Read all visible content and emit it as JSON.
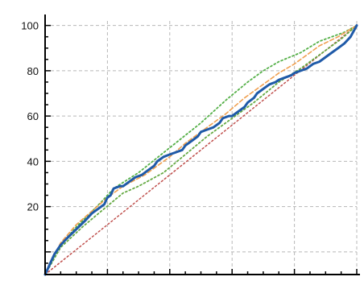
{
  "chart_data": {
    "type": "line",
    "title": "",
    "xlabel": "",
    "ylabel": "",
    "xlim": [
      0,
      100
    ],
    "ylim": [
      -10,
      102
    ],
    "grid": true,
    "y_tick_labels": [
      {
        "value": 100,
        "label": "100"
      },
      {
        "value": 80,
        "label": "80"
      },
      {
        "value": 60,
        "label": "60"
      },
      {
        "value": 40,
        "label": "40"
      },
      {
        "value": 20,
        "label": "20"
      }
    ],
    "grid_x": [
      20,
      40,
      60,
      80,
      100
    ],
    "grid_y": [
      0,
      20,
      40,
      60,
      80,
      100
    ],
    "minor_ticks_x": [
      0,
      5,
      10,
      15,
      20,
      25,
      30,
      35,
      40,
      45,
      50,
      55,
      60,
      65,
      70,
      75,
      80,
      85,
      90,
      95,
      100
    ],
    "minor_ticks_y": [
      -10,
      -5,
      0,
      5,
      10,
      15,
      20,
      25,
      30,
      35,
      40,
      45,
      50,
      55,
      60,
      65,
      70,
      75,
      80,
      85,
      90,
      95,
      100
    ],
    "series": [
      {
        "color": "#c0504d",
        "style": "dotted",
        "width": 1.5,
        "points": [
          [
            0,
            -10
          ],
          [
            100,
            100
          ]
        ]
      },
      {
        "color": "#66aa44",
        "style": "dotted",
        "width": 1.8,
        "points": [
          [
            0,
            -10
          ],
          [
            5,
            2
          ],
          [
            12,
            11
          ],
          [
            18,
            18
          ],
          [
            25,
            26
          ],
          [
            30,
            29
          ],
          [
            38,
            35
          ],
          [
            45,
            43
          ],
          [
            52,
            51
          ],
          [
            60,
            59
          ],
          [
            67,
            66
          ],
          [
            75,
            75
          ],
          [
            82,
            81
          ],
          [
            90,
            89
          ],
          [
            95,
            94
          ],
          [
            100,
            100
          ]
        ]
      },
      {
        "color": "#55b048",
        "style": "dotted",
        "width": 1.8,
        "points": [
          [
            0,
            -10
          ],
          [
            5,
            3
          ],
          [
            10,
            11
          ],
          [
            18,
            22
          ],
          [
            22,
            28
          ],
          [
            30,
            35
          ],
          [
            40,
            46
          ],
          [
            50,
            57
          ],
          [
            58,
            67
          ],
          [
            65,
            75
          ],
          [
            70,
            80
          ],
          [
            75,
            84
          ],
          [
            82,
            88
          ],
          [
            88,
            93
          ],
          [
            92,
            95
          ],
          [
            96,
            97
          ],
          [
            100,
            100
          ]
        ]
      },
      {
        "color": "#f0a050",
        "style": "dashed",
        "width": 1.6,
        "points": [
          [
            0,
            -10
          ],
          [
            5,
            4
          ],
          [
            10,
            12
          ],
          [
            15,
            18
          ],
          [
            20,
            24
          ],
          [
            25,
            29
          ],
          [
            32,
            34
          ],
          [
            40,
            42
          ],
          [
            45,
            48
          ],
          [
            50,
            53
          ],
          [
            58,
            61
          ],
          [
            64,
            68
          ],
          [
            70,
            74
          ],
          [
            75,
            79
          ],
          [
            80,
            83
          ],
          [
            85,
            88
          ],
          [
            88,
            91
          ],
          [
            94,
            95
          ],
          [
            100,
            100
          ]
        ]
      },
      {
        "color": "#1f5aa8",
        "style": "solid",
        "width": 3,
        "points": [
          [
            0,
            -10
          ],
          [
            1,
            -7
          ],
          [
            2,
            -4
          ],
          [
            3,
            -1
          ],
          [
            5,
            3
          ],
          [
            7,
            6
          ],
          [
            10,
            10
          ],
          [
            13,
            14
          ],
          [
            15,
            17
          ],
          [
            17,
            19
          ],
          [
            19,
            21
          ],
          [
            20,
            24
          ],
          [
            21,
            25
          ],
          [
            22,
            28
          ],
          [
            24,
            29
          ],
          [
            25,
            29
          ],
          [
            27,
            31
          ],
          [
            29,
            33
          ],
          [
            31,
            34
          ],
          [
            33,
            36
          ],
          [
            35,
            38
          ],
          [
            36,
            40
          ],
          [
            37,
            41
          ],
          [
            38,
            42
          ],
          [
            40,
            43
          ],
          [
            42,
            44
          ],
          [
            44,
            45
          ],
          [
            45,
            47
          ],
          [
            47,
            49
          ],
          [
            49,
            51
          ],
          [
            50,
            53
          ],
          [
            52,
            54
          ],
          [
            54,
            55
          ],
          [
            56,
            57
          ],
          [
            57,
            59
          ],
          [
            59,
            60
          ],
          [
            60,
            60
          ],
          [
            62,
            62
          ],
          [
            64,
            64
          ],
          [
            65,
            66
          ],
          [
            67,
            68
          ],
          [
            68,
            70
          ],
          [
            70,
            72
          ],
          [
            72,
            74
          ],
          [
            74,
            75
          ],
          [
            75,
            76
          ],
          [
            77,
            77
          ],
          [
            79,
            78
          ],
          [
            80,
            79
          ],
          [
            82,
            80
          ],
          [
            84,
            81
          ],
          [
            86,
            83
          ],
          [
            88,
            84
          ],
          [
            90,
            86
          ],
          [
            92,
            88
          ],
          [
            94,
            90
          ],
          [
            96,
            92
          ],
          [
            98,
            95
          ],
          [
            100,
            100
          ]
        ]
      }
    ]
  }
}
